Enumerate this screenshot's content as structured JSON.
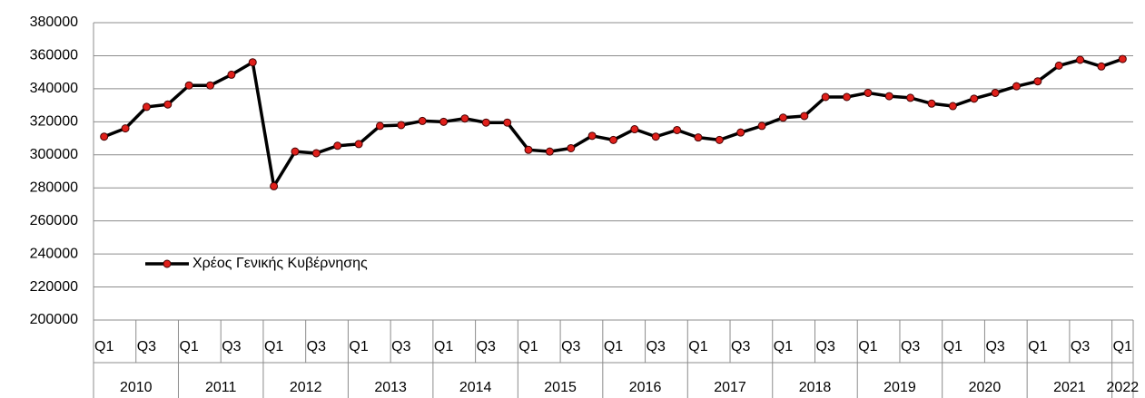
{
  "chart_data": {
    "type": "line",
    "categories": [
      "Q1",
      null,
      "Q3",
      null,
      "Q1",
      null,
      "Q3",
      null,
      "Q1",
      null,
      "Q3",
      null,
      "Q1",
      null,
      "Q3",
      null,
      "Q1",
      null,
      "Q3",
      null,
      "Q1",
      null,
      "Q3",
      null,
      "Q1",
      null,
      "Q3",
      null,
      "Q1",
      null,
      "Q3",
      null,
      "Q1",
      null,
      "Q3",
      null,
      "Q1",
      null,
      "Q3",
      null,
      "Q1",
      null,
      "Q3",
      null,
      "Q1",
      null,
      "Q3",
      null,
      "Q1"
    ],
    "years": [
      "2010",
      "2011",
      "2012",
      "2013",
      "2014",
      "2015",
      "2016",
      "2017",
      "2018",
      "2019",
      "2020",
      "2021",
      "2022"
    ],
    "series": [
      {
        "name": "Χρέος Γενικής Κυβέρνησης",
        "color": "#000000",
        "marker_color": "#e0201b",
        "values": [
          311000,
          316000,
          329000,
          330500,
          342000,
          342000,
          348500,
          356000,
          281000,
          302000,
          301000,
          305500,
          306500,
          317500,
          318000,
          320500,
          320000,
          322000,
          319500,
          319500,
          303000,
          302000,
          304000,
          311500,
          309000,
          315500,
          311000,
          315000,
          310500,
          309000,
          313500,
          317500,
          322500,
          323500,
          335000,
          335000,
          337500,
          335500,
          334500,
          331000,
          329500,
          334000,
          337500,
          341500,
          344500,
          354000,
          357500,
          353500,
          358000
        ]
      }
    ],
    "ylim": [
      200000,
      380000
    ],
    "yticks": [
      200000,
      220000,
      240000,
      260000,
      280000,
      300000,
      320000,
      340000,
      360000,
      380000
    ],
    "grid": true,
    "legend": "left"
  }
}
